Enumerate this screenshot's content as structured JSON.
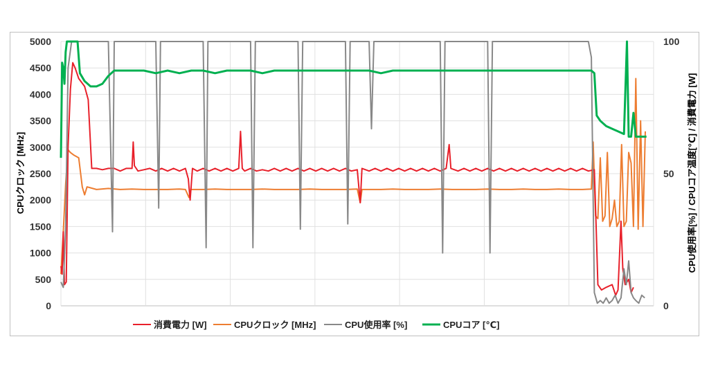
{
  "chart_data": {
    "type": "line",
    "y_left": {
      "label": "CPUクロック [MHz]",
      "min": 0,
      "max": 5000,
      "ticks": [
        "0",
        "500",
        "1000",
        "1500",
        "2000",
        "2500",
        "3000",
        "3500",
        "4000",
        "4500",
        "5000"
      ]
    },
    "y_right": {
      "label": "CPU使用率[%] / CPUコア温度[℃] / 消費電力 [W]",
      "min": 0,
      "max": 100,
      "ticks": [
        "0",
        "50",
        "100"
      ]
    },
    "x": {
      "min": 0,
      "max": 1000,
      "ticks_hidden": true
    },
    "grid": true,
    "legend_position": "bottom",
    "series": [
      {
        "name": "消費電力 [W]",
        "axis": "right",
        "color": "#e8202a",
        "points": [
          [
            0,
            15
          ],
          [
            2,
            12
          ],
          [
            4,
            28
          ],
          [
            6,
            8
          ],
          [
            9,
            9
          ],
          [
            12,
            60
          ],
          [
            16,
            82
          ],
          [
            20,
            92
          ],
          [
            24,
            90
          ],
          [
            30,
            86
          ],
          [
            40,
            83
          ],
          [
            46,
            78
          ],
          [
            52,
            52
          ],
          [
            60,
            52
          ],
          [
            70,
            51.5
          ],
          [
            80,
            52
          ],
          [
            90,
            52
          ],
          [
            100,
            51
          ],
          [
            110,
            52
          ],
          [
            120,
            52
          ],
          [
            122,
            62
          ],
          [
            124,
            53
          ],
          [
            130,
            51
          ],
          [
            140,
            51.5
          ],
          [
            150,
            52
          ],
          [
            160,
            51
          ],
          [
            170,
            52
          ],
          [
            180,
            51
          ],
          [
            190,
            52
          ],
          [
            200,
            51
          ],
          [
            210,
            52
          ],
          [
            215,
            48
          ],
          [
            218,
            40
          ],
          [
            222,
            52
          ],
          [
            230,
            51
          ],
          [
            240,
            52
          ],
          [
            250,
            51
          ],
          [
            260,
            52
          ],
          [
            270,
            51
          ],
          [
            280,
            52
          ],
          [
            290,
            51
          ],
          [
            300,
            52
          ],
          [
            303,
            66
          ],
          [
            306,
            52
          ],
          [
            310,
            51
          ],
          [
            320,
            52
          ],
          [
            330,
            51
          ],
          [
            340,
            51.5
          ],
          [
            350,
            51
          ],
          [
            360,
            52
          ],
          [
            370,
            51
          ],
          [
            380,
            52
          ],
          [
            390,
            51
          ],
          [
            400,
            52
          ],
          [
            410,
            51
          ],
          [
            420,
            52
          ],
          [
            430,
            51
          ],
          [
            440,
            52
          ],
          [
            450,
            51
          ],
          [
            460,
            52
          ],
          [
            470,
            51
          ],
          [
            480,
            52
          ],
          [
            490,
            51
          ],
          [
            500,
            51.5
          ],
          [
            505,
            39
          ],
          [
            508,
            52
          ],
          [
            520,
            51
          ],
          [
            530,
            52
          ],
          [
            540,
            51
          ],
          [
            550,
            52
          ],
          [
            560,
            51
          ],
          [
            570,
            52
          ],
          [
            580,
            51
          ],
          [
            590,
            52
          ],
          [
            600,
            51
          ],
          [
            610,
            52
          ],
          [
            620,
            51
          ],
          [
            630,
            52
          ],
          [
            640,
            51
          ],
          [
            650,
            52
          ],
          [
            655,
            61
          ],
          [
            658,
            52
          ],
          [
            670,
            51
          ],
          [
            680,
            52
          ],
          [
            690,
            51
          ],
          [
            700,
            52
          ],
          [
            710,
            51
          ],
          [
            720,
            52
          ],
          [
            730,
            51
          ],
          [
            740,
            52
          ],
          [
            750,
            51
          ],
          [
            760,
            52
          ],
          [
            770,
            51
          ],
          [
            780,
            52
          ],
          [
            790,
            51
          ],
          [
            800,
            52
          ],
          [
            810,
            51
          ],
          [
            820,
            52
          ],
          [
            830,
            51
          ],
          [
            840,
            52
          ],
          [
            850,
            51
          ],
          [
            860,
            52
          ],
          [
            870,
            51
          ],
          [
            880,
            52
          ],
          [
            890,
            51
          ],
          [
            900,
            51.5
          ],
          [
            903,
            30
          ],
          [
            906,
            8
          ],
          [
            912,
            6
          ],
          [
            920,
            7
          ],
          [
            930,
            8
          ],
          [
            936,
            4
          ],
          [
            940,
            6
          ],
          [
            945,
            32
          ],
          [
            948,
            14
          ],
          [
            952,
            8
          ],
          [
            958,
            10
          ],
          [
            962,
            5
          ],
          [
            966,
            7
          ]
        ]
      },
      {
        "name": "CPUクロック [MHz]",
        "axis": "left",
        "color": "#ed7d31",
        "points": [
          [
            0,
            600
          ],
          [
            4,
            1400
          ],
          [
            8,
            2300
          ],
          [
            12,
            2950
          ],
          [
            16,
            2900
          ],
          [
            22,
            2850
          ],
          [
            30,
            2800
          ],
          [
            36,
            2250
          ],
          [
            40,
            2100
          ],
          [
            44,
            2250
          ],
          [
            60,
            2200
          ],
          [
            80,
            2220
          ],
          [
            100,
            2200
          ],
          [
            120,
            2210
          ],
          [
            140,
            2200
          ],
          [
            160,
            2200
          ],
          [
            180,
            2200
          ],
          [
            200,
            2210
          ],
          [
            210,
            2200
          ],
          [
            216,
            2050
          ],
          [
            219,
            2200
          ],
          [
            240,
            2200
          ],
          [
            260,
            2210
          ],
          [
            280,
            2200
          ],
          [
            300,
            2200
          ],
          [
            320,
            2200
          ],
          [
            340,
            2210
          ],
          [
            360,
            2200
          ],
          [
            380,
            2200
          ],
          [
            400,
            2200
          ],
          [
            420,
            2210
          ],
          [
            440,
            2200
          ],
          [
            460,
            2200
          ],
          [
            480,
            2200
          ],
          [
            500,
            2210
          ],
          [
            505,
            1950
          ],
          [
            508,
            2200
          ],
          [
            520,
            2200
          ],
          [
            540,
            2200
          ],
          [
            560,
            2210
          ],
          [
            580,
            2200
          ],
          [
            600,
            2200
          ],
          [
            620,
            2200
          ],
          [
            640,
            2210
          ],
          [
            660,
            2200
          ],
          [
            680,
            2200
          ],
          [
            700,
            2200
          ],
          [
            720,
            2210
          ],
          [
            740,
            2200
          ],
          [
            760,
            2200
          ],
          [
            780,
            2210
          ],
          [
            800,
            2200
          ],
          [
            820,
            2200
          ],
          [
            840,
            2210
          ],
          [
            860,
            2200
          ],
          [
            880,
            2200
          ],
          [
            895,
            2210
          ],
          [
            898,
            3100
          ],
          [
            902,
            1700
          ],
          [
            906,
            1650
          ],
          [
            910,
            2800
          ],
          [
            914,
            1600
          ],
          [
            918,
            1700
          ],
          [
            922,
            2900
          ],
          [
            926,
            1500
          ],
          [
            930,
            1650
          ],
          [
            934,
            2000
          ],
          [
            938,
            1500
          ],
          [
            942,
            1600
          ],
          [
            946,
            3050
          ],
          [
            950,
            1500
          ],
          [
            954,
            1600
          ],
          [
            958,
            2900
          ],
          [
            962,
            2700
          ],
          [
            966,
            1500
          ],
          [
            970,
            4300
          ],
          [
            974,
            1450
          ],
          [
            978,
            3500
          ],
          [
            982,
            1500
          ],
          [
            986,
            3300
          ]
        ]
      },
      {
        "name": "CPU使用率 [%]",
        "axis": "right",
        "color": "#888888",
        "points": [
          [
            0,
            9
          ],
          [
            4,
            7
          ],
          [
            8,
            30
          ],
          [
            12,
            90
          ],
          [
            18,
            100
          ],
          [
            30,
            100
          ],
          [
            60,
            100
          ],
          [
            80,
            100
          ],
          [
            87,
            28
          ],
          [
            90,
            100
          ],
          [
            160,
            100
          ],
          [
            165,
            37
          ],
          [
            168,
            100
          ],
          [
            240,
            100
          ],
          [
            245,
            22
          ],
          [
            248,
            100
          ],
          [
            320,
            100
          ],
          [
            324,
            22
          ],
          [
            328,
            100
          ],
          [
            400,
            100
          ],
          [
            404,
            29
          ],
          [
            408,
            100
          ],
          [
            480,
            100
          ],
          [
            484,
            31
          ],
          [
            488,
            100
          ],
          [
            520,
            100
          ],
          [
            524,
            67
          ],
          [
            528,
            100
          ],
          [
            640,
            100
          ],
          [
            644,
            20
          ],
          [
            648,
            100
          ],
          [
            720,
            100
          ],
          [
            724,
            20
          ],
          [
            728,
            100
          ],
          [
            890,
            100
          ],
          [
            895,
            94
          ],
          [
            900,
            5
          ],
          [
            905,
            1
          ],
          [
            910,
            2
          ],
          [
            915,
            1
          ],
          [
            920,
            3
          ],
          [
            925,
            1
          ],
          [
            930,
            2
          ],
          [
            935,
            4
          ],
          [
            940,
            1
          ],
          [
            945,
            3
          ],
          [
            950,
            14
          ],
          [
            954,
            8
          ],
          [
            958,
            17
          ],
          [
            962,
            5
          ],
          [
            966,
            3
          ],
          [
            970,
            2
          ],
          [
            975,
            1
          ],
          [
            980,
            4
          ],
          [
            985,
            3
          ]
        ]
      },
      {
        "name": "CPUコア [℃]",
        "axis": "right",
        "color": "#00b050",
        "points": [
          [
            0,
            56
          ],
          [
            2,
            92
          ],
          [
            4,
            90
          ],
          [
            6,
            84
          ],
          [
            8,
            96
          ],
          [
            10,
            100
          ],
          [
            14,
            100
          ],
          [
            20,
            100
          ],
          [
            28,
            100
          ],
          [
            32,
            88
          ],
          [
            40,
            85
          ],
          [
            50,
            83
          ],
          [
            60,
            83
          ],
          [
            70,
            84
          ],
          [
            80,
            87
          ],
          [
            90,
            89
          ],
          [
            100,
            89
          ],
          [
            120,
            89
          ],
          [
            140,
            89
          ],
          [
            160,
            88
          ],
          [
            180,
            89
          ],
          [
            200,
            88
          ],
          [
            220,
            89
          ],
          [
            240,
            89
          ],
          [
            260,
            88
          ],
          [
            280,
            89
          ],
          [
            300,
            89
          ],
          [
            320,
            89
          ],
          [
            340,
            88
          ],
          [
            360,
            89
          ],
          [
            380,
            89
          ],
          [
            400,
            89
          ],
          [
            420,
            89
          ],
          [
            440,
            89
          ],
          [
            460,
            89
          ],
          [
            480,
            89
          ],
          [
            500,
            89
          ],
          [
            520,
            89
          ],
          [
            540,
            88
          ],
          [
            560,
            89
          ],
          [
            580,
            89
          ],
          [
            600,
            89
          ],
          [
            620,
            89
          ],
          [
            640,
            89
          ],
          [
            660,
            89
          ],
          [
            680,
            89
          ],
          [
            700,
            89
          ],
          [
            720,
            89
          ],
          [
            740,
            89
          ],
          [
            760,
            89
          ],
          [
            780,
            89
          ],
          [
            800,
            89
          ],
          [
            820,
            89
          ],
          [
            840,
            89
          ],
          [
            860,
            89
          ],
          [
            880,
            89
          ],
          [
            895,
            89
          ],
          [
            900,
            88
          ],
          [
            904,
            72
          ],
          [
            910,
            70
          ],
          [
            920,
            68
          ],
          [
            930,
            67
          ],
          [
            940,
            66
          ],
          [
            950,
            65
          ],
          [
            955,
            100
          ],
          [
            958,
            64
          ],
          [
            962,
            64
          ],
          [
            966,
            73
          ],
          [
            970,
            64
          ],
          [
            980,
            64
          ],
          [
            988,
            64
          ]
        ]
      }
    ]
  }
}
